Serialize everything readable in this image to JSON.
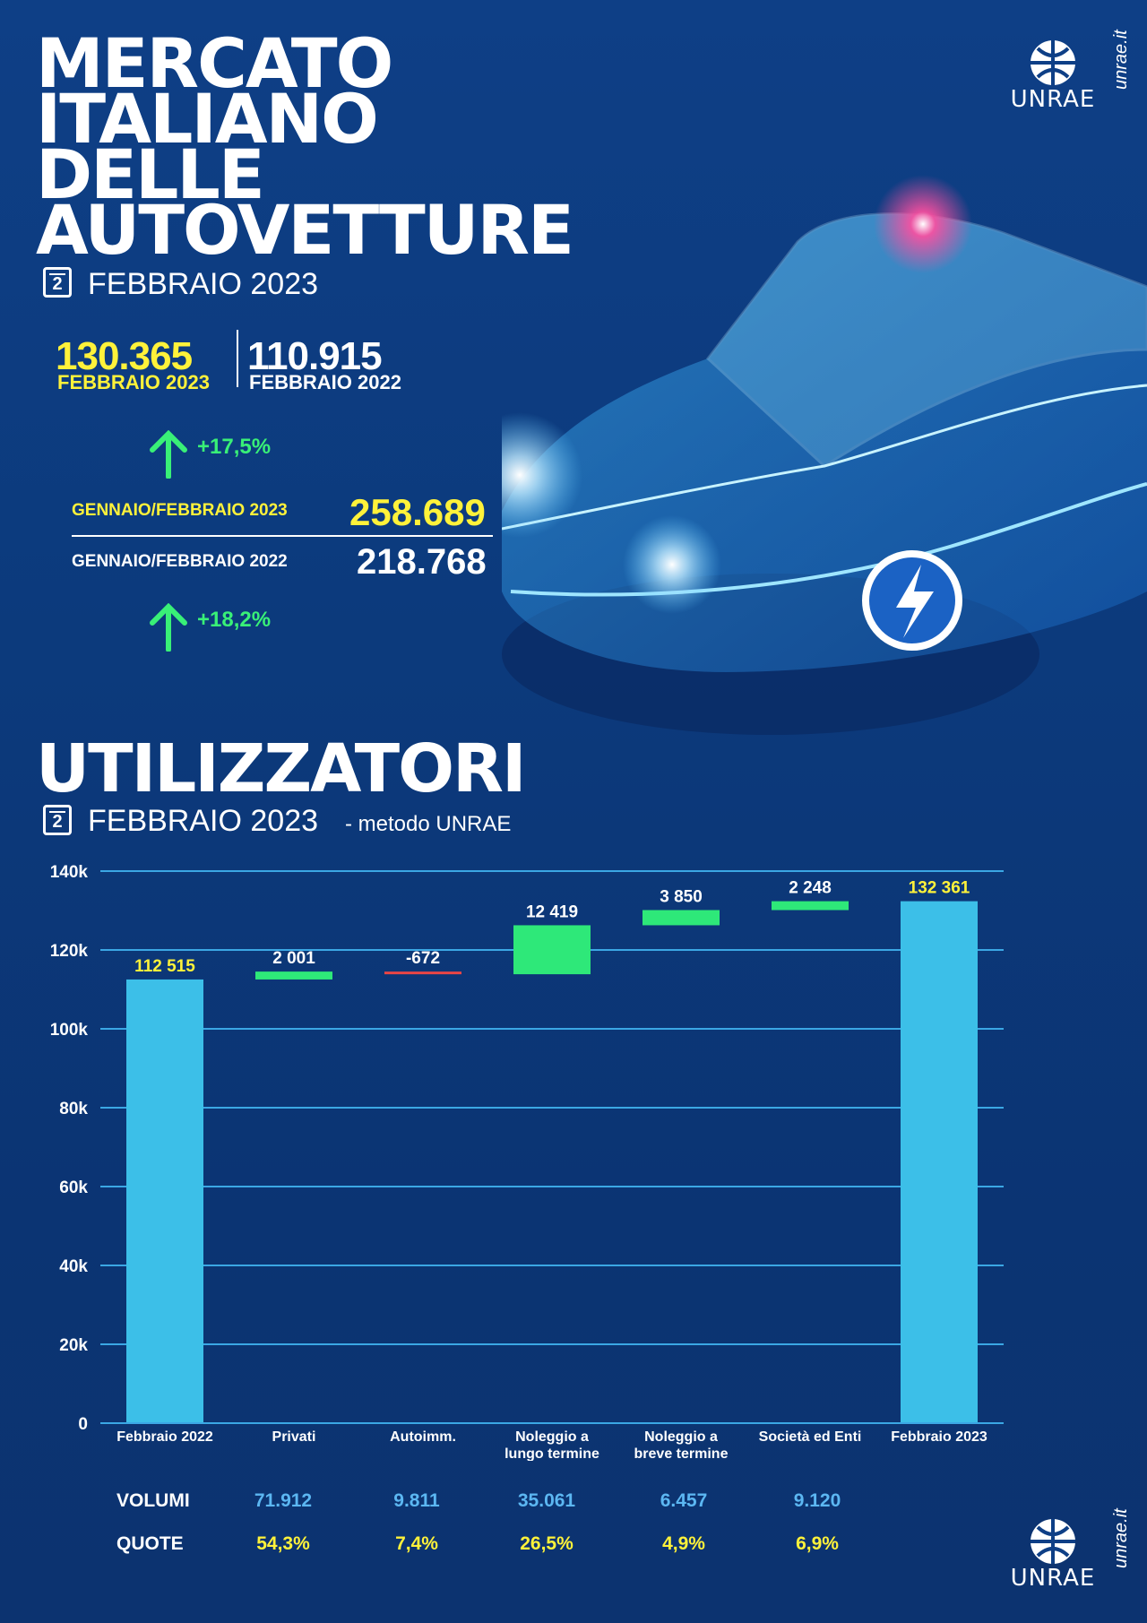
{
  "header": {
    "title_lines": [
      "MERCATO",
      "ITALIANO",
      "DELLE",
      "AUTOVETTURE"
    ],
    "calendar_number": "2",
    "period": "FEBBRAIO 2023"
  },
  "brand": {
    "logo_text": "UNRAE",
    "site": "unrae.it"
  },
  "stats": {
    "current_value": "130.365",
    "current_label": "FEBBRAIO 2023",
    "previous_value": "110.915",
    "previous_label": "FEBBRAIO 2022",
    "month_change": "+17,5%",
    "ytd_current_label": "GENNAIO/FEBBRAIO 2023",
    "ytd_current_value": "258.689",
    "ytd_previous_label": "GENNAIO/FEBBRAIO 2022",
    "ytd_previous_value": "218.768",
    "ytd_change": "+18,2%"
  },
  "section": {
    "title": "UTILIZZATORI",
    "calendar_number": "2",
    "period": "FEBBRAIO 2023",
    "method": "- metodo UNRAE"
  },
  "colors": {
    "total_bar": "#3cbfe8",
    "increase": "#2ee879",
    "decrease": "#e84545",
    "total_label": "#fff23a",
    "delta_label": "#ffffff"
  },
  "chart_data": {
    "type": "bar",
    "subtype": "waterfall",
    "categories": [
      "Febbraio 2022",
      "Privati",
      "Autoimm.",
      "Noleggio a lungo termine",
      "Noleggio a breve termine",
      "Società ed Enti",
      "Febbraio 2023"
    ],
    "category_lines": [
      [
        "Febbraio 2022"
      ],
      [
        "Privati"
      ],
      [
        "Autoimm."
      ],
      [
        "Noleggio a",
        "lungo termine"
      ],
      [
        "Noleggio a",
        "breve termine"
      ],
      [
        "Società ed Enti"
      ],
      [
        "Febbraio 2023"
      ]
    ],
    "values": [
      112515,
      2001,
      -672,
      12419,
      3850,
      2248,
      132361
    ],
    "value_labels": [
      "112 515",
      "2 001",
      "-672",
      "12 419",
      "3 850",
      "2 248",
      "132 361"
    ],
    "kinds": [
      "total",
      "delta",
      "delta",
      "delta",
      "delta",
      "delta",
      "total"
    ],
    "ylim": [
      0,
      140000
    ],
    "yticks": [
      0,
      20000,
      40000,
      60000,
      80000,
      100000,
      120000,
      140000
    ],
    "ytick_labels": [
      "0",
      "20k",
      "40k",
      "60k",
      "80k",
      "100k",
      "120k",
      "140k"
    ],
    "grid": true
  },
  "table": {
    "volumes_label": "VOLUMI",
    "shares_label": "QUOTE",
    "volumes": [
      "71.912",
      "9.811",
      "35.061",
      "6.457",
      "9.120"
    ],
    "shares": [
      "54,3%",
      "7,4%",
      "26,5%",
      "4,9%",
      "6,9%"
    ]
  }
}
